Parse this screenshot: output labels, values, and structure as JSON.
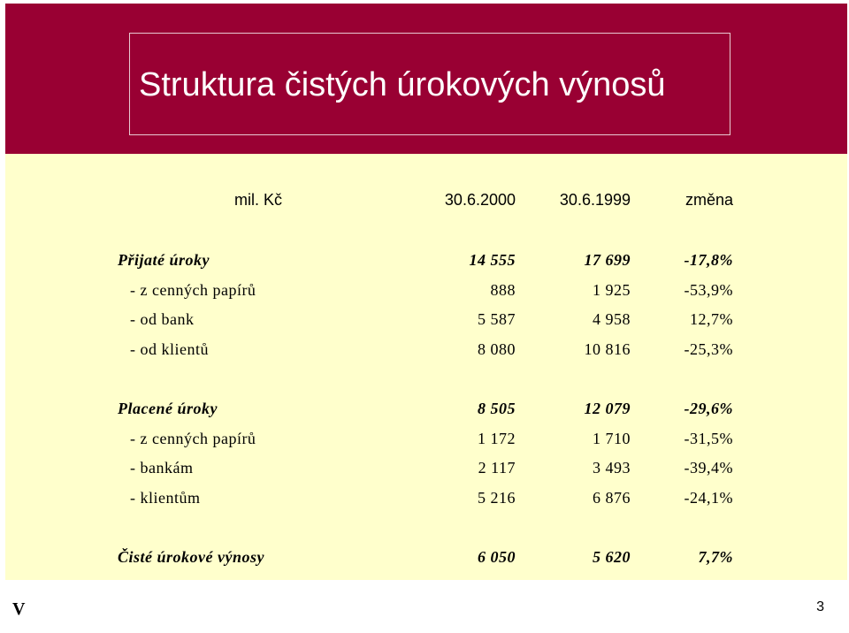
{
  "title": "Struktura čistých úrokových výnosů",
  "header": {
    "unit": "mil. Kč",
    "col1": "30.6.2000",
    "col2": "30.6.1999",
    "col3": "změna"
  },
  "rows": [
    {
      "label": "Přijaté úroky",
      "v1": "14 555",
      "v2": "17 699",
      "v3": "-17,8%"
    },
    {
      "label": "- z cenných papírů",
      "v1": "888",
      "v2": "1 925",
      "v3": "-53,9%"
    },
    {
      "label": "- od bank",
      "v1": "5 587",
      "v2": "4 958",
      "v3": "12,7%"
    },
    {
      "label": "- od klientů",
      "v1": "8 080",
      "v2": "10 816",
      "v3": "-25,3%"
    },
    {
      "label": "Placené úroky",
      "v1": "8 505",
      "v2": "12 079",
      "v3": "-29,6%"
    },
    {
      "label": "- z cenných papírů",
      "v1": "1 172",
      "v2": "1 710",
      "v3": "-31,5%"
    },
    {
      "label": "- bankám",
      "v1": "2 117",
      "v2": "3 493",
      "v3": "-39,4%"
    },
    {
      "label": "- klientům",
      "v1": "5 216",
      "v2": "6 876",
      "v3": "-24,1%"
    },
    {
      "label": "Čisté úrokové výnosy",
      "v1": "6 050",
      "v2": "5 620",
      "v3": "7,7%"
    }
  ],
  "footer": {
    "left": "V",
    "page": "3"
  },
  "colors": {
    "banner": "#990033",
    "content": "#ffffcc"
  }
}
